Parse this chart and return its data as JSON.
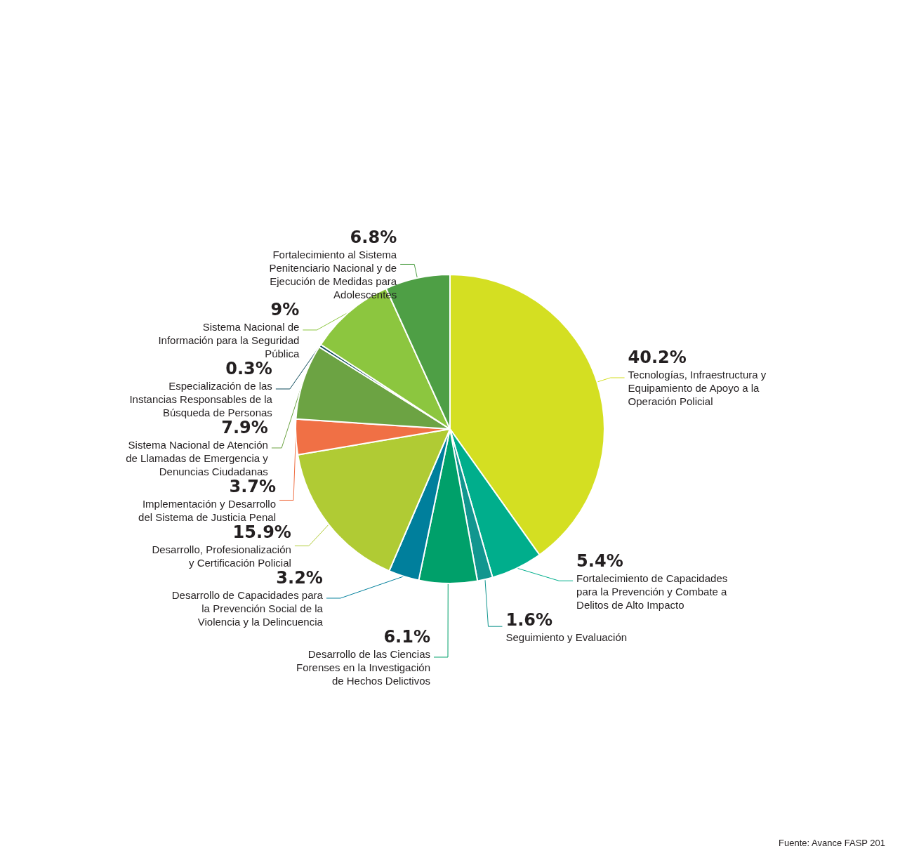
{
  "chart_data": {
    "type": "pie",
    "categories": [
      "Tecnologías, Infraestructura y Equipamiento de Apoyo a la Operación Policial",
      "Fortalecimiento de Capacidades para la Prevención y Combate a Delitos de Alto Impacto",
      "Seguimiento y Evaluación",
      "Desarrollo de las Ciencias Forenses en la Investigación de Hechos Delictivos",
      "Desarrollo de Capacidades para la Prevención Social de la Violencia y la Delincuencia",
      "Desarrollo, Profesionalización y Certificación Policial",
      "Implementación y Desarrollo del Sistema de Justicia Penal",
      "Sistema Nacional de Atención de Llamadas de Emergencia y Denuncias Ciudadanas",
      "Especialización de las Instancias Responsables de la Búsqueda de Personas",
      "Sistema Nacional de Información para la Seguridad Pública",
      "Fortalecimiento al Sistema Penitenciario Nacional y de Ejecución de Medidas para Adolescentes"
    ],
    "values": [
      40.2,
      5.4,
      1.6,
      6.1,
      3.2,
      15.9,
      3.7,
      7.9,
      0.3,
      9,
      6.8
    ],
    "value_labels": [
      "40.2%",
      "5.4%",
      "1.6%",
      "6.1%",
      "3.2%",
      "15.9%",
      "3.7%",
      "7.9%",
      "0.3%",
      "9%",
      "6.8%"
    ],
    "colors": [
      "#d4df22",
      "#00ae8c",
      "#12968f",
      "#00a06a",
      "#007f9c",
      "#b0cb34",
      "#f07045",
      "#6ca343",
      "#0d4a5a",
      "#8cc63f",
      "#4e9f45"
    ],
    "legend": false,
    "annotations": [
      "Fuente: Avance FASP 201"
    ]
  }
}
